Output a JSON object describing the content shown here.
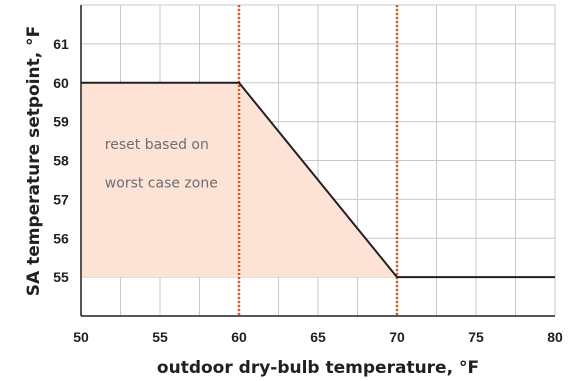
{
  "chart_data": {
    "type": "line",
    "title": "",
    "xlabel": "outdoor dry-bulb temperature, °F",
    "ylabel": "SA temperature setpoint, °F",
    "xlim": [
      50,
      80
    ],
    "ylim": [
      54,
      62
    ],
    "x_ticks": [
      50,
      55,
      60,
      65,
      70,
      75,
      80
    ],
    "y_ticks": [
      55,
      56,
      57,
      58,
      59,
      60,
      61
    ],
    "grid": "vertical every 2.5 °F, horizontal every 1 °F",
    "series": [
      {
        "x": [
          50,
          60,
          70,
          80
        ],
        "y": [
          60,
          60,
          55,
          55
        ],
        "color": "#231f20"
      }
    ],
    "shaded_region": {
      "x": [
        50,
        60,
        70
      ],
      "y_top": [
        60,
        60,
        55
      ],
      "y_bottom": 55,
      "color": "#fce3d6"
    },
    "vertical_markers": [
      {
        "x": 60,
        "style": "dotted",
        "color": "#e0561f"
      },
      {
        "x": 70,
        "style": "dotted",
        "color": "#e0561f"
      }
    ],
    "annotations": [
      {
        "text": "reset based on",
        "x": 51,
        "y": 58.3
      },
      {
        "text": "worst case zone",
        "x": 51,
        "y": 57.3
      }
    ],
    "legend": "none"
  }
}
